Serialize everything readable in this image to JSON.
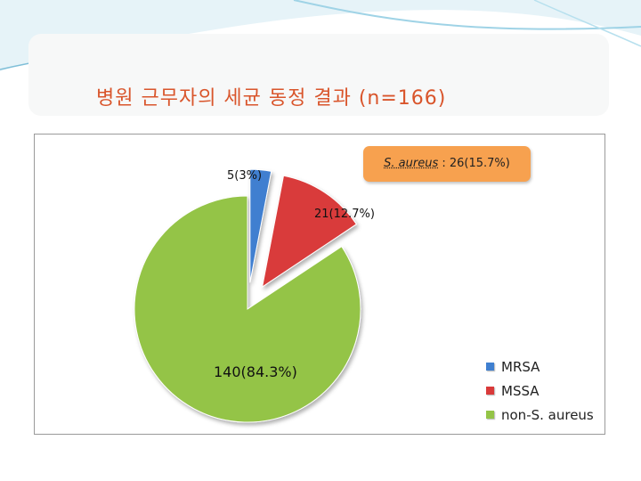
{
  "slide": {
    "title": "병원 근무자의 세균 동정 결과  (n=166)"
  },
  "chart_data": {
    "type": "pie",
    "slices": [
      {
        "name": "MRSA",
        "value": 5,
        "label": "5(3%)",
        "color": "#3f7fd0"
      },
      {
        "name": "MSSA",
        "value": 21,
        "label": "21(12.7%)",
        "color": "#d93a3a"
      },
      {
        "name": "non-S. aureus",
        "value": 140,
        "label": "140(84.3%)",
        "color": "#94c447"
      }
    ],
    "legend": {
      "position": "bottom-right",
      "entries": [
        "MRSA",
        "MSSA",
        "non-S. aureus"
      ]
    },
    "annotation": {
      "species": "S. aureus",
      "text": " : 26(15.7%)",
      "color": "#f7a14f"
    }
  }
}
